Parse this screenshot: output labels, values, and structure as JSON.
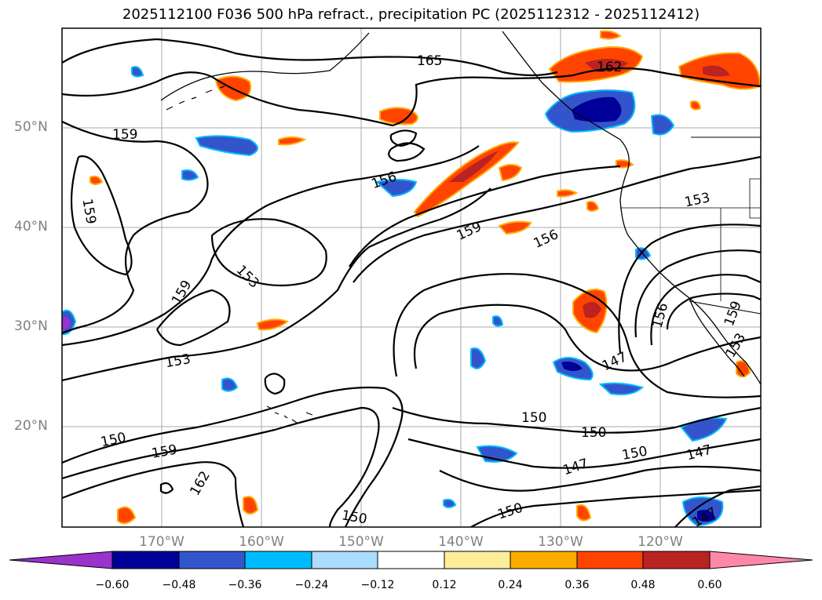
{
  "title": "2025112100 F036 500 hPa refract., precipitation PC (2025112312 - 2025112412)",
  "map": {
    "lat_labels": [
      "50°N",
      "40°N",
      "30°N",
      "20°N"
    ],
    "lon_labels": [
      "170°W",
      "160°W",
      "150°W",
      "140°W",
      "130°W",
      "120°W"
    ],
    "gridline_color": "#aaaaaa",
    "coastline_color": "#000000"
  },
  "contours": {
    "levels": [
      "147",
      "150",
      "153",
      "156",
      "159",
      "162",
      "165"
    ],
    "labels": [
      {
        "text": "165"
      },
      {
        "text": "162"
      },
      {
        "text": "159"
      },
      {
        "text": "159"
      },
      {
        "text": "156"
      },
      {
        "text": "159"
      },
      {
        "text": "156"
      },
      {
        "text": "153"
      },
      {
        "text": "159"
      },
      {
        "text": "153"
      },
      {
        "text": "153"
      },
      {
        "text": "156"
      },
      {
        "text": "159"
      },
      {
        "text": "153"
      },
      {
        "text": "147"
      },
      {
        "text": "150"
      },
      {
        "text": "150"
      },
      {
        "text": "150"
      },
      {
        "text": "159"
      },
      {
        "text": "162"
      },
      {
        "text": "147"
      },
      {
        "text": "150"
      },
      {
        "text": "147"
      },
      {
        "text": "150"
      },
      {
        "text": "150"
      },
      {
        "text": "147"
      }
    ]
  },
  "colorbar": {
    "tick_labels": [
      "−0.60",
      "−0.48",
      "−0.36",
      "−0.24",
      "−0.12",
      "0.12",
      "0.24",
      "0.36",
      "0.48",
      "0.60"
    ],
    "colors": [
      "#9933cc",
      "#000099",
      "#3355cc",
      "#00bbff",
      "#aaddff",
      "#ffffff",
      "#ffee99",
      "#ffaa00",
      "#ff4400",
      "#bb2222",
      "#ff88aa"
    ]
  }
}
